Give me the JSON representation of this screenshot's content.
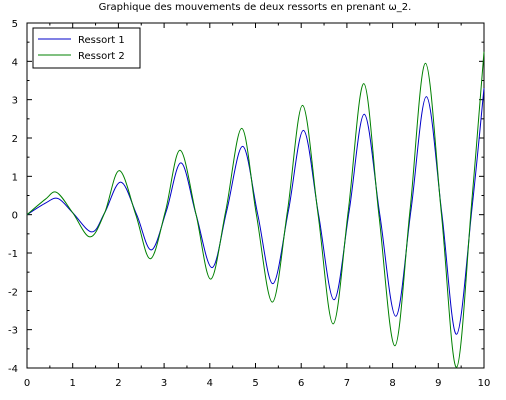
{
  "chart_data": {
    "type": "line",
    "title": "Graphique des mouvements de deux ressorts en prenant ω_2.",
    "xlabel": "",
    "ylabel": "",
    "xlim": [
      0,
      10
    ],
    "ylim": [
      -4,
      5
    ],
    "x_ticks": [
      0,
      1,
      2,
      3,
      4,
      5,
      6,
      7,
      8,
      9,
      10
    ],
    "y_ticks": [
      -4,
      -3,
      -2,
      -1,
      0,
      1,
      2,
      3,
      4,
      5
    ],
    "grid": false,
    "legend_position": "top-left",
    "series": [
      {
        "name": "Ressort 1",
        "color": "#0000c8",
        "x": [
          0,
          0.4,
          0.68,
          1.0,
          1.42,
          1.7,
          2.05,
          2.4,
          2.72,
          3.05,
          3.37,
          3.7,
          4.05,
          4.37,
          4.72,
          5.05,
          5.38,
          5.72,
          6.05,
          6.38,
          6.72,
          7.05,
          7.38,
          7.72,
          8.07,
          8.4,
          8.74,
          9.08,
          9.4,
          9.74,
          10.0
        ],
        "y": [
          0,
          0.3,
          0.42,
          0.05,
          -0.45,
          0.05,
          0.85,
          0.0,
          -0.92,
          0.1,
          1.35,
          0.0,
          -1.38,
          0.1,
          1.78,
          0.0,
          -1.8,
          0.1,
          2.2,
          0.0,
          -2.22,
          0.1,
          2.62,
          0.0,
          -2.65,
          0.1,
          3.08,
          0.0,
          -3.12,
          0.2,
          3.3
        ]
      },
      {
        "name": "Ressort 2",
        "color": "#008000",
        "x": [
          0,
          0.4,
          0.65,
          1.0,
          1.38,
          1.7,
          2.02,
          2.38,
          2.7,
          3.03,
          3.35,
          3.7,
          4.02,
          4.35,
          4.7,
          5.02,
          5.37,
          5.7,
          6.03,
          6.37,
          6.7,
          7.03,
          7.37,
          7.7,
          8.05,
          8.38,
          8.72,
          9.07,
          9.4,
          9.73,
          10.0
        ],
        "y": [
          0,
          0.4,
          0.58,
          0.05,
          -0.58,
          0.05,
          1.15,
          0.0,
          -1.15,
          0.1,
          1.68,
          0.0,
          -1.68,
          0.1,
          2.25,
          0.0,
          -2.28,
          0.1,
          2.85,
          0.0,
          -2.85,
          0.1,
          3.42,
          0.0,
          -3.42,
          0.1,
          3.95,
          0.0,
          -3.98,
          0.3,
          4.25
        ]
      }
    ]
  }
}
